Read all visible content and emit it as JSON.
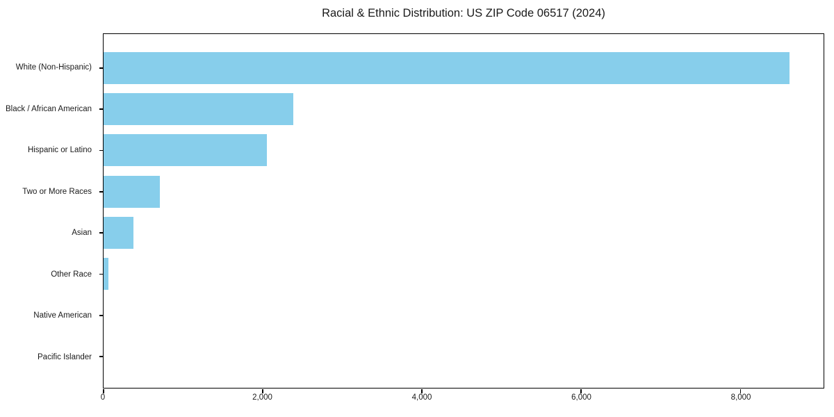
{
  "title": "Racial & Ethnic Distribution: US ZIP Code 06517 (2024)",
  "colors": {
    "bar": "#87CEEB",
    "spine": "#000000",
    "text": "#1a1a1a",
    "background": "#ffffff"
  },
  "chart_data": {
    "type": "bar",
    "orientation": "horizontal",
    "title": "Racial & Ethnic Distribution: US ZIP Code 06517 (2024)",
    "categories": [
      "White (Non-Hispanic)",
      "Black / African American",
      "Hispanic or Latino",
      "Two or More Races",
      "Asian",
      "Other Race",
      "Native American",
      "Pacific Islander"
    ],
    "values": [
      8615,
      2380,
      2055,
      710,
      375,
      65,
      0,
      0
    ],
    "xlabel": "",
    "ylabel": "",
    "xlim": [
      0,
      9045
    ],
    "xticks": [
      0,
      2000,
      4000,
      6000,
      8000
    ],
    "xtick_labels": [
      "0",
      "2,000",
      "4,000",
      "6,000",
      "8,000"
    ],
    "bar_color": "#87CEEB",
    "grid": false,
    "legend": "none",
    "largest_bar_on_top": true
  }
}
